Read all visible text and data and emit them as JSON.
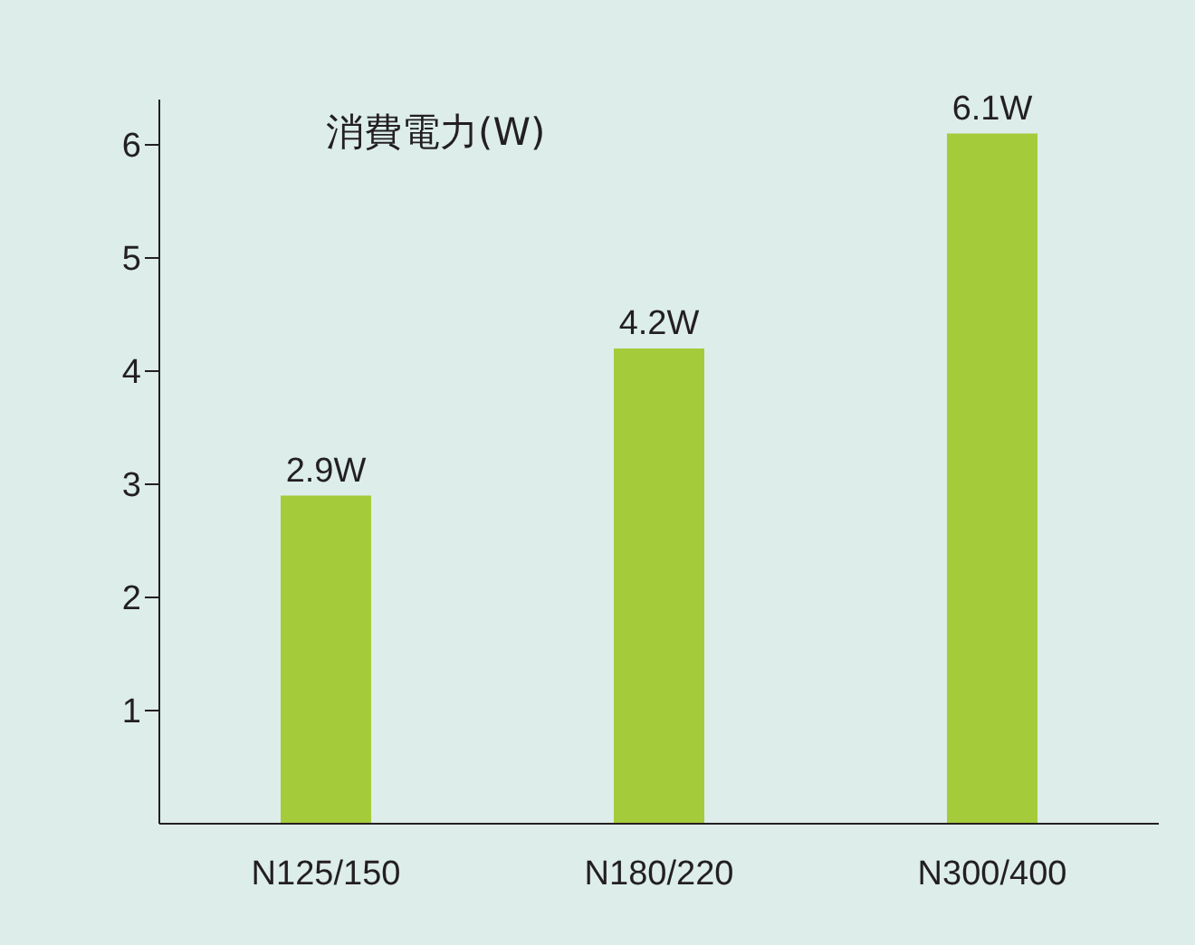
{
  "chart_data": {
    "type": "bar",
    "title": "消費電力(W)",
    "categories": [
      "N125/150",
      "N180/220",
      "N300/400"
    ],
    "values": [
      2.9,
      4.2,
      6.1
    ],
    "value_labels": [
      "2.9W",
      "4.2W",
      "6.1W"
    ],
    "color": "#a4cc3a",
    "ylim": [
      0,
      6.4
    ],
    "yticks": [
      1,
      2,
      3,
      4,
      5,
      6
    ],
    "grid": false,
    "legend": false
  }
}
